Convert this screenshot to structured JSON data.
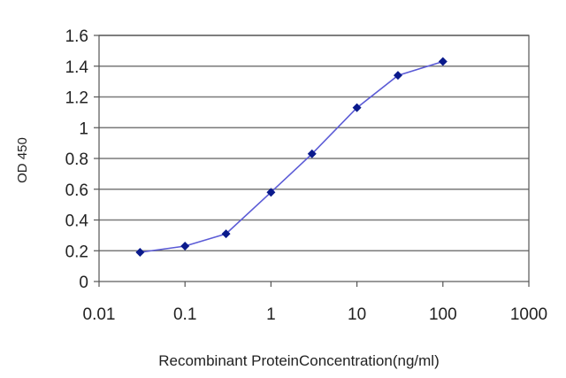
{
  "chart_data": {
    "type": "line",
    "xlabel": "Recombinant ProteinConcentration(ng/ml)",
    "ylabel": "OD 450",
    "x_scale": "log",
    "xlim": [
      0.01,
      1000
    ],
    "ylim": [
      0,
      1.6
    ],
    "x_ticks": [
      "0.01",
      "0.1",
      "1",
      "10",
      "100",
      "1000"
    ],
    "y_ticks": [
      "0",
      "0.2",
      "0.4",
      "0.6",
      "0.8",
      "1",
      "1.2",
      "1.4",
      "1.6"
    ],
    "grid": "horizontal",
    "series": [
      {
        "x": [
          0.03,
          0.1,
          0.3,
          1,
          3,
          10,
          30,
          100
        ],
        "y": [
          0.19,
          0.23,
          0.31,
          0.58,
          0.83,
          1.13,
          1.34,
          1.43
        ]
      }
    ],
    "colors": {
      "line": "#5b5bd6",
      "marker": "#0a1a8c",
      "grid": "#7a7a7a",
      "axis": "#555555"
    }
  }
}
